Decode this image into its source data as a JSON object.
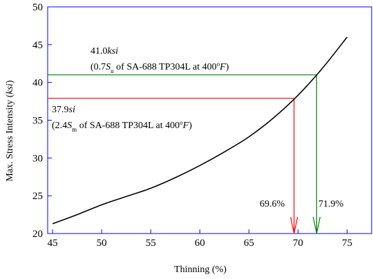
{
  "chart_data": {
    "type": "line",
    "xlabel": "Thinning (%)",
    "ylabel_parts": {
      "pre": "Max. Stress Intensity (",
      "unit": "ksi",
      "post": ")"
    },
    "xlim": [
      44.5,
      77.5
    ],
    "ylim": [
      20,
      50
    ],
    "xticks": [
      "45",
      "50",
      "55",
      "60",
      "65",
      "70",
      "75"
    ],
    "yticks": [
      "20",
      "25",
      "30",
      "35",
      "40",
      "45",
      "50"
    ],
    "grid": false,
    "curve": {
      "color": "#000000",
      "x": [
        45,
        47.5,
        50,
        52.5,
        55,
        57.5,
        60,
        62.5,
        65,
        67.5,
        70,
        72.5,
        75
      ],
      "y": [
        21.3,
        22.5,
        23.8,
        24.9,
        26.0,
        27.4,
        29.0,
        30.8,
        32.8,
        35.3,
        38.3,
        41.9,
        46.0
      ]
    },
    "annotations": [
      {
        "color": "#008000",
        "value_y": 41.0,
        "marker_x": 71.9,
        "label_x": "71.9%",
        "line1": {
          "num": "41.0",
          "unit": "ksi"
        },
        "line2": {
          "a": "(0.7",
          "s": "S",
          "sub": "u",
          "b": " of SA-688 TP304L at 400",
          "sup": "o",
          "f": "F",
          "c": ")"
        }
      },
      {
        "color": "#ff0000",
        "value_y": 37.9,
        "marker_x": 69.6,
        "label_x": "69.6%",
        "line1": {
          "num": "37.9",
          "unit": "si"
        },
        "line2": {
          "a": "(2.4",
          "s": "S",
          "sub": "m",
          "b": " of SA-688 TP304L at 400",
          "sup": "o",
          "f": "F",
          "c": ")"
        }
      }
    ],
    "frame_color": "#0000ff"
  }
}
